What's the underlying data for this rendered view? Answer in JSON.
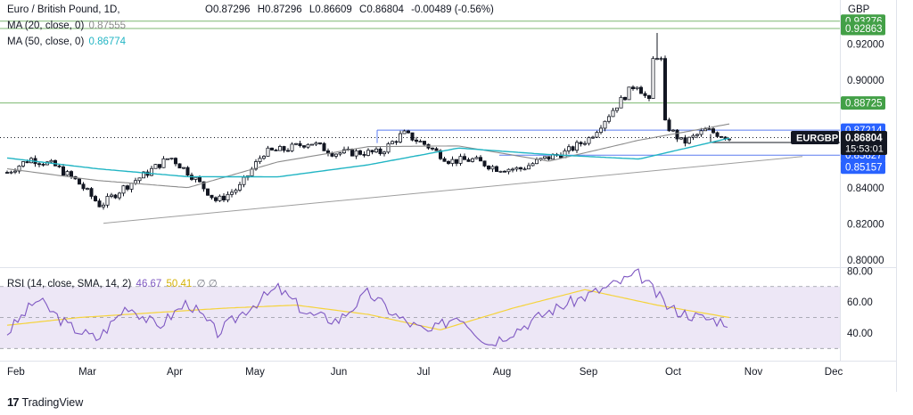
{
  "header": {
    "symbol_title": "Euro / British Pound, 1D,",
    "ohlc": [
      {
        "key": "O",
        "value": "0.87296"
      },
      {
        "key": "H",
        "value": "0.87296"
      },
      {
        "key": "L",
        "value": "0.86609"
      },
      {
        "key": "C",
        "value": "0.86804"
      }
    ],
    "change": "-0.00489 (-0.56%)",
    "ma20_label": "MA (20, close, 0)",
    "ma20_value": "0.87555",
    "ma50_label": "MA (50, close, 0)",
    "ma50_value": "0.86774",
    "currency": "GBP"
  },
  "rsi_header": {
    "label": "RSI (14, close, SMA, 14, 2)",
    "rsi_value": "46.67",
    "sma_value": "50.41",
    "extra": "∅ ∅"
  },
  "branding": {
    "name": "TradingView"
  },
  "colors": {
    "up": "#ffffff",
    "down": "#131722",
    "ma20": "#8c8c8c",
    "ma50": "#22b5c4",
    "green_line": "#7cb870",
    "green_tag": "#43a047",
    "blue_line": "#5b7cf0",
    "blue_tag": "#2962ff",
    "trend": "#9e9e9e",
    "rsi": "#7e57c2",
    "rsi_sma": "#f5d33b",
    "rsi_band": "#ede7f6",
    "current": "#131722"
  },
  "chart_data": {
    "type": "candlestick",
    "title": "Euro / British Pound, 1D,",
    "x_axis_labels": [
      "Feb",
      "Mar",
      "Apr",
      "May",
      "Jun",
      "Jul",
      "Aug",
      "Sep",
      "Oct",
      "Nov",
      "Dec"
    ],
    "y_axis_ticks": [
      "0.92000",
      "0.90000",
      "0.86000",
      "0.84000",
      "0.82000",
      "0.80000"
    ],
    "y_range": [
      0.796,
      0.9445
    ],
    "green_levels": [
      "0.93276",
      "0.92863",
      "0.88725"
    ],
    "blue_levels": [
      "0.87214",
      "0.85827",
      "0.85157"
    ],
    "current": {
      "symbol": "EURGBP",
      "price": "0.86804",
      "countdown": "15:53:01"
    },
    "close_path": [
      [
        "Feb",
        0.8487
      ],
      [
        "Feb",
        0.8563
      ],
      [
        "Feb",
        0.8527
      ],
      [
        "Feb",
        0.8437
      ],
      [
        "Mar",
        0.8302
      ],
      [
        "Mar",
        0.8402
      ],
      [
        "Mar",
        0.8483
      ],
      [
        "Mar",
        0.8573
      ],
      [
        "Apr",
        0.8461
      ],
      [
        "Apr",
        0.8326
      ],
      [
        "Apr",
        0.8407
      ],
      [
        "May",
        0.8596
      ],
      [
        "May",
        0.8616
      ],
      [
        "May",
        0.8656
      ],
      [
        "May",
        0.8595
      ],
      [
        "Jun",
        0.8597
      ],
      [
        "Jun",
        0.8596
      ],
      [
        "Jun",
        0.8704
      ],
      [
        "Jul",
        0.8638
      ],
      [
        "Jul",
        0.855
      ],
      [
        "Jul",
        0.8557
      ],
      [
        "Aug",
        0.851
      ],
      [
        "Aug",
        0.8505
      ],
      [
        "Aug",
        0.856
      ],
      [
        "Sep",
        0.86
      ],
      [
        "Sep",
        0.8678
      ],
      [
        "Sep",
        0.8835
      ],
      [
        "Sep",
        0.8984
      ],
      [
        "Oct",
        0.8792
      ],
      [
        "Oct",
        0.865
      ],
      [
        "Oct",
        0.8722
      ],
      [
        "Oct",
        0.868
      ]
    ],
    "ma50_path": [
      [
        "Feb",
        0.8567
      ],
      [
        "Mar",
        0.8507
      ],
      [
        "Apr",
        0.8463
      ],
      [
        "May",
        0.8462
      ],
      [
        "Jun",
        0.8529
      ],
      [
        "Jul",
        0.8622
      ],
      [
        "Aug",
        0.8586
      ],
      [
        "Sep",
        0.8561
      ],
      [
        "Oct",
        0.8677
      ]
    ],
    "ma20_path": [
      [
        "Feb",
        0.8507
      ],
      [
        "Mar",
        0.8442
      ],
      [
        "Apr",
        0.8402
      ],
      [
        "May",
        0.8545
      ],
      [
        "Jun",
        0.863
      ],
      [
        "Jul",
        0.8634
      ],
      [
        "Aug",
        0.8549
      ],
      [
        "Sep",
        0.8666
      ],
      [
        "Oct",
        0.8756
      ]
    ],
    "trendline": [
      [
        "Mar",
        0.8204
      ],
      [
        "Nov",
        0.8575
      ]
    ],
    "rsi": {
      "y_ticks": [
        "80.00",
        "60.00",
        "40.00"
      ],
      "band": [
        30,
        70
      ],
      "mid": 50,
      "rsi_path": [
        [
          "Feb",
          40
        ],
        [
          "Feb",
          62
        ],
        [
          "Feb",
          45
        ],
        [
          "Mar",
          36
        ],
        [
          "Mar",
          58
        ],
        [
          "Mar",
          44
        ],
        [
          "Apr",
          60
        ],
        [
          "Apr",
          40
        ],
        [
          "Apr",
          56
        ],
        [
          "May",
          69
        ],
        [
          "May",
          52
        ],
        [
          "Jun",
          48
        ],
        [
          "Jun",
          66
        ],
        [
          "Jun",
          50
        ],
        [
          "Jul",
          40
        ],
        [
          "Jul",
          52
        ],
        [
          "Aug",
          33
        ],
        [
          "Aug",
          43
        ],
        [
          "Aug",
          54
        ],
        [
          "Sep",
          62
        ],
        [
          "Sep",
          70
        ],
        [
          "Sep",
          78
        ],
        [
          "Oct",
          56
        ],
        [
          "Oct",
          50
        ],
        [
          "Oct",
          47
        ]
      ],
      "sma_path": [
        [
          "Feb",
          45
        ],
        [
          "Mar",
          50
        ],
        [
          "Apr",
          53
        ],
        [
          "May",
          56
        ],
        [
          "Jun",
          58
        ],
        [
          "Jul",
          52
        ],
        [
          "Aug",
          42
        ],
        [
          "Sep",
          56
        ],
        [
          "Sep",
          68
        ],
        [
          "Oct",
          58
        ],
        [
          "Oct",
          50
        ]
      ]
    }
  }
}
